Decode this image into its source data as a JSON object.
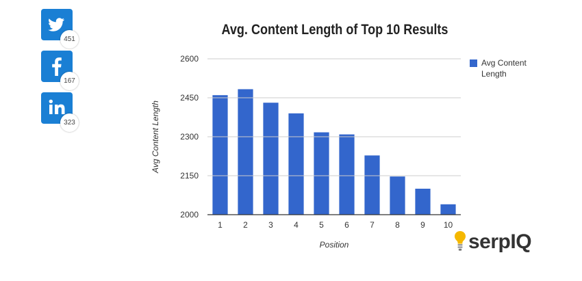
{
  "social": {
    "twitter": {
      "icon": "twitter-icon",
      "count": "451",
      "color": "#1a7fd4"
    },
    "facebook": {
      "icon": "facebook-icon",
      "count": "167",
      "color": "#1a7fd4"
    },
    "linkedin": {
      "icon": "linkedin-icon",
      "count": "323",
      "color": "#1a7fd4"
    }
  },
  "chart_data": {
    "type": "bar",
    "title": "Avg. Content Length of Top 10 Results",
    "xlabel": "Position",
    "ylabel": "Avg Content Length",
    "categories": [
      "1",
      "2",
      "3",
      "4",
      "5",
      "6",
      "7",
      "8",
      "9",
      "10"
    ],
    "series": [
      {
        "name": "Avg Content Length",
        "values": [
          2460,
          2483,
          2431,
          2390,
          2317,
          2309,
          2228,
          2147,
          2100,
          2040
        ],
        "color": "#3366cc"
      }
    ],
    "ylim": [
      2000,
      2600
    ],
    "yticks": [
      "2000",
      "2150",
      "2300",
      "2450",
      "2600"
    ],
    "grid": true,
    "legend": "right",
    "legend_lines": [
      "Avg Content",
      "Length"
    ]
  },
  "logo": {
    "text": "serpIQ",
    "icon": "lightbulb-icon",
    "bulb_color": "#f5b800"
  }
}
